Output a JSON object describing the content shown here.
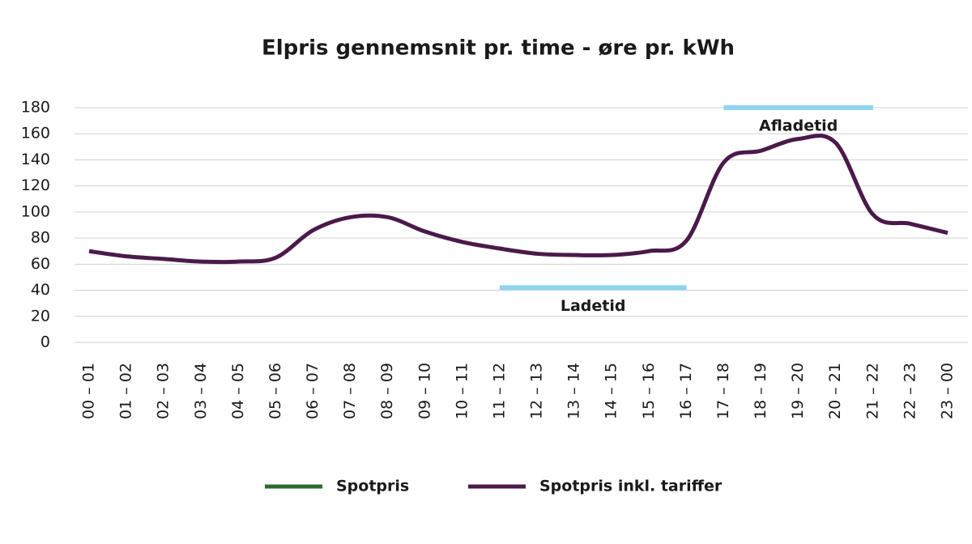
{
  "chart_data": {
    "type": "line",
    "title": "Elpris gennemsnit pr. time - øre pr. kWh",
    "categories": [
      "00 – 01",
      "01 – 02",
      "02 – 03",
      "03 – 04",
      "04 – 05",
      "05 – 06",
      "06 – 07",
      "07 – 08",
      "08 – 09",
      "09 – 10",
      "10 – 11",
      "11 – 12",
      "12 – 13",
      "13 – 14",
      "14 – 15",
      "15 – 16",
      "16 – 17",
      "17 – 18",
      "18 – 19",
      "19 – 20",
      "20 – 21",
      "21 – 22",
      "22 – 23",
      "23 – 00"
    ],
    "series": [
      {
        "name": "Spotpris",
        "color": "#2d6a2e",
        "values": [
          null,
          null,
          null,
          null,
          null,
          null,
          null,
          null,
          null,
          null,
          null,
          null,
          null,
          null,
          null,
          null,
          null,
          null,
          null,
          null,
          null,
          null,
          null,
          null
        ]
      },
      {
        "name": "Spotpris inkl. tariffer",
        "color": "#4a1a4a",
        "values": [
          70,
          66,
          64,
          62,
          62,
          65,
          86,
          96,
          96,
          85,
          77,
          72,
          68,
          67,
          67,
          70,
          78,
          138,
          147,
          156,
          153,
          98,
          91,
          84
        ]
      }
    ],
    "ylim": [
      0,
      180
    ],
    "yticks": [
      0,
      20,
      40,
      60,
      80,
      100,
      120,
      140,
      160,
      180
    ],
    "grid": true,
    "annotations": [
      {
        "text": "Ladetid",
        "from": "11 – 12",
        "to": "16 – 17",
        "y": 42,
        "color": "#8fd3ef"
      },
      {
        "text": "Afladetid",
        "from": "17 – 18",
        "to": "21 – 22",
        "y": 180,
        "color": "#8fd3ef"
      }
    ]
  }
}
